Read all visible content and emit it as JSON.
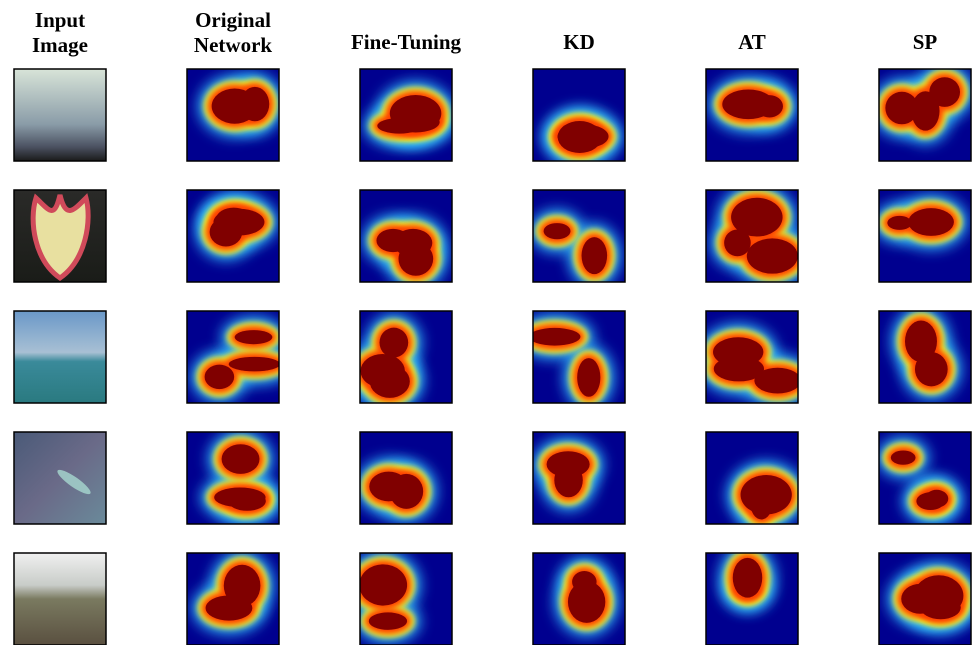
{
  "figure": {
    "columns": [
      "Input Image",
      "Original Network",
      "Fine-Tuning",
      "KD",
      "AT",
      "SP"
    ]
  }
}
